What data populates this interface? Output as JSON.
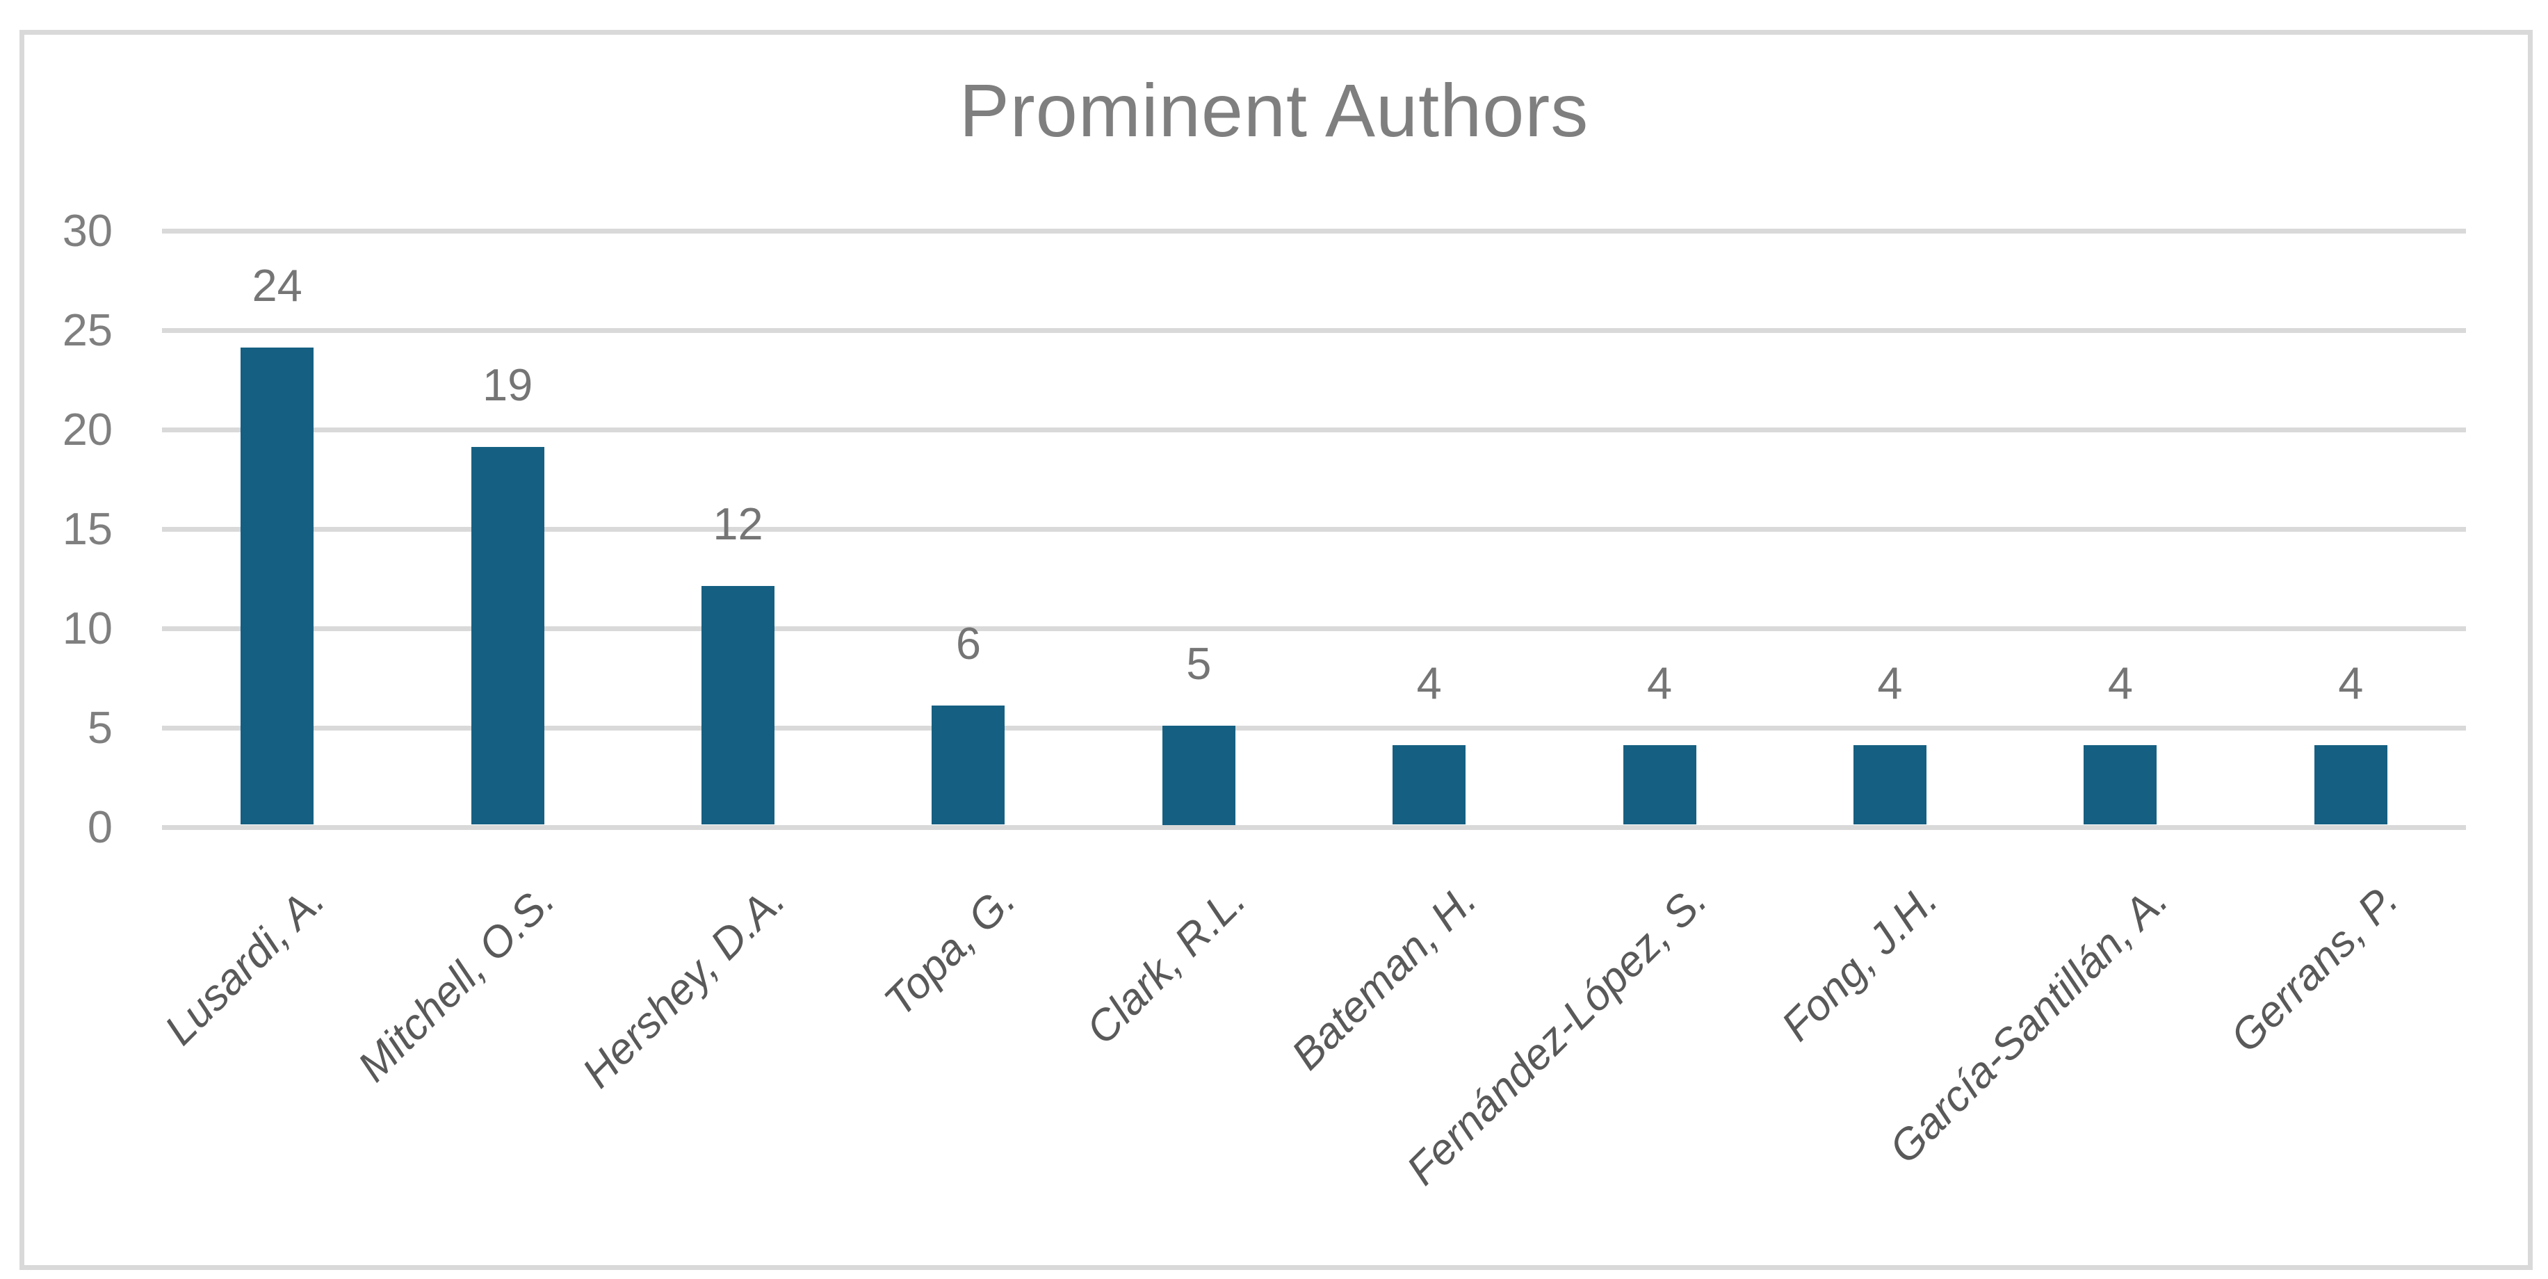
{
  "chart_data": {
    "type": "bar",
    "title": "Prominent Authors",
    "categories": [
      "Lusardi, A.",
      "Mitchell, O.S.",
      "Hershey, D.A.",
      "Topa, G.",
      "Clark, R.L.",
      "Bateman, H.",
      "Fernández-López, S.",
      "Fong, J.H.",
      "García-Santillán, A.",
      "Gerrans, P."
    ],
    "values": [
      24,
      19,
      12,
      6,
      5,
      4,
      4,
      4,
      4,
      4
    ],
    "data_labels": [
      "24",
      "19",
      "12",
      "6",
      "5",
      "4",
      "4",
      "4",
      "4",
      "4"
    ],
    "xlabel": "",
    "ylabel": "",
    "ylim": [
      0,
      30
    ],
    "yticks": [
      0,
      5,
      10,
      15,
      20,
      25,
      30
    ],
    "grid": true,
    "legend": false,
    "colors": {
      "bar": "#156082",
      "gridline": "#d9d9d9",
      "frame_border": "#d9d9d9",
      "title_text": "#7f7f7f",
      "tick_label_text": "#7f7f7f",
      "data_label_text": "#757575",
      "category_label_text": "#595959",
      "background": "#ffffff"
    }
  }
}
